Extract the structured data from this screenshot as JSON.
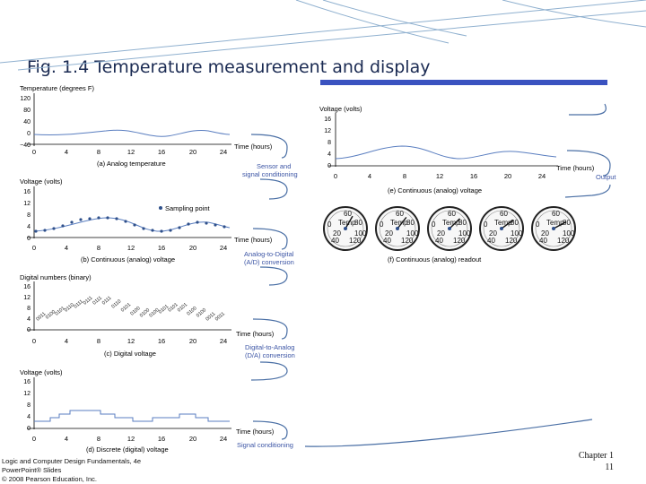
{
  "title": "Fig. 1.4 Temperature measurement and display",
  "footer": {
    "line1": "Logic and Computer Design Fundamentals, 4e",
    "line2": "PowerPoint® Slides",
    "line3": "© 2008 Pearson Education, Inc.",
    "chapter": "Chapter 1",
    "page": "11"
  },
  "axes": {
    "x_ticks": [
      "0",
      "4",
      "8",
      "12",
      "16",
      "20",
      "24"
    ],
    "x_label": "Time (hours)",
    "temp_label": "Temperature (degrees F)",
    "temp_ticks": [
      "120",
      "80",
      "40",
      "0",
      "−40"
    ],
    "volt_label": "Voltage (volts)",
    "volt_ticks": [
      "16",
      "12",
      "8",
      "4",
      "0"
    ],
    "digital_label": "Digital numbers (binary)",
    "sampling_point": "Sampling point"
  },
  "captions": {
    "a": "(a) Analog temperature",
    "b": "(b) Continuous (analog) voltage",
    "c": "(c) Digital voltage",
    "d": "(d) Discrete (digital) voltage",
    "e": "(e) Continuous (analog) voltage",
    "f": "(f) Continuous (analog) readout"
  },
  "steps": {
    "sensor": "Sensor and",
    "sensor2": "signal conditioning",
    "adc": "Analog-to-Digital",
    "adc2": "(A/D) conversion",
    "dac": "Digital-to-Analog",
    "dac2": "(D/A) conversion",
    "signal": "Signal conditioning",
    "output": "Output"
  },
  "gauge": {
    "label": "Temp",
    "ticks": [
      "0",
      "20",
      "40",
      "60",
      "80",
      "100",
      "120"
    ],
    "count": 5
  },
  "binary_samples": [
    "0011",
    "0100",
    "0101",
    "0110",
    "0111",
    "0111",
    "0111",
    "0111",
    "0110",
    "0101",
    "0100",
    "0100",
    "0100",
    "0101",
    "0101",
    "0101",
    "0100",
    "0100",
    "0011",
    "0011"
  ],
  "colors": {
    "title_bar": "#3a52c0",
    "title_text": "#1a2a52",
    "arrow": "#4a6fa5",
    "label_blue": "#3c55a5"
  }
}
